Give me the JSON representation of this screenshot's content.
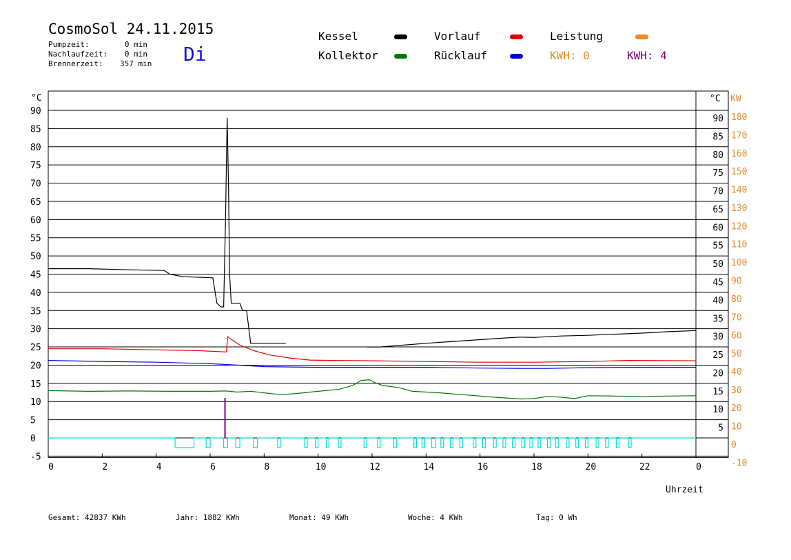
{
  "header": {
    "title": "CosmoSol 24.11.2015",
    "day": "Di",
    "stats": [
      {
        "label": "Pumpzeit:",
        "value": "0 min"
      },
      {
        "label": "Nachlaufzeit:",
        "value": "0 min"
      },
      {
        "label": "Brennerzeit:",
        "value": "357 min"
      }
    ]
  },
  "legend": {
    "kessel": "Kessel",
    "kollektor": "Kollektor",
    "vorlauf": "Vorlauf",
    "ruecklauf": "Rücklauf",
    "leistung": "Leistung",
    "kwh1": "KWH: 0",
    "kwh2": "KWH: 4"
  },
  "footer": {
    "gesamt": "Gesamt:  42837 KWh",
    "jahr": "Jahr:   1882 KWh",
    "monat": "Monat:     49 KWh",
    "woche": "Woche:      4 KWh",
    "tag": "Tag:      0 Wh"
  },
  "colors": {
    "kessel": "#000000",
    "kollektor": "#007800",
    "vorlauf": "#e00000",
    "ruecklauf": "#0000e0",
    "leistung": "#f08c1e",
    "kwh2": "#800080",
    "pump": "#00dcdc",
    "rightAxis": "#e08c28"
  },
  "chart_data": {
    "type": "line",
    "xlabel": "Uhrzeit",
    "ylabel_left": "°C",
    "ylabel_right": "°C",
    "ylabel_power": "KW",
    "xlim": [
      0,
      24
    ],
    "ylim": [
      -5,
      90
    ],
    "x_ticks": [
      "0",
      "2",
      "4",
      "6",
      "8",
      "10",
      "12",
      "14",
      "16",
      "18",
      "20",
      "22",
      "0"
    ],
    "y_ticks_left": [
      "90",
      "85",
      "80",
      "75",
      "70",
      "65",
      "60",
      "55",
      "50",
      "45",
      "40",
      "35",
      "30",
      "25",
      "20",
      "15",
      "10",
      "5",
      "0",
      "-5"
    ],
    "y_ticks_right": [
      "90",
      "85",
      "80",
      "75",
      "70",
      "65",
      "60",
      "55",
      "50",
      "45",
      "40",
      "35",
      "30",
      "25",
      "20",
      "15",
      "10",
      "5"
    ],
    "y_ticks_power": [
      "180",
      "170",
      "160",
      "150",
      "140",
      "130",
      "120",
      "110",
      "100",
      "90",
      "80",
      "70",
      "60",
      "50",
      "40",
      "30",
      "20",
      "10",
      "0",
      "-10"
    ],
    "grid": true,
    "series": [
      {
        "name": "Kessel",
        "color": "#000000",
        "points": [
          [
            0,
            46.5
          ],
          [
            1.5,
            46.5
          ],
          [
            3,
            46.2
          ],
          [
            4.3,
            46
          ],
          [
            4.5,
            45
          ],
          [
            5,
            44.3
          ],
          [
            6.1,
            44
          ],
          [
            6.25,
            37
          ],
          [
            6.4,
            36
          ],
          [
            6.5,
            36
          ],
          [
            6.57,
            60
          ],
          [
            6.63,
            88
          ],
          [
            6.68,
            70
          ],
          [
            6.72,
            45
          ],
          [
            6.78,
            37
          ],
          [
            7.1,
            37
          ],
          [
            7.2,
            35
          ],
          [
            7.35,
            35
          ],
          [
            7.5,
            26
          ],
          [
            8.8,
            26
          ]
        ]
      },
      {
        "name": "Kessel",
        "color": "#000000",
        "points": [
          [
            11.8,
            25
          ],
          [
            12.3,
            25
          ],
          [
            13,
            25.4
          ],
          [
            14,
            26
          ],
          [
            15,
            26.5
          ],
          [
            16,
            27
          ],
          [
            17,
            27.5
          ],
          [
            17.5,
            27.7
          ],
          [
            18,
            27.6
          ],
          [
            19,
            28
          ],
          [
            20,
            28.2
          ],
          [
            21,
            28.5
          ],
          [
            22,
            28.8
          ],
          [
            23,
            29.2
          ],
          [
            24,
            29.5
          ]
        ]
      },
      {
        "name": "Vorlauf",
        "color": "#e00000",
        "points": [
          [
            0,
            24.5
          ],
          [
            2,
            24.5
          ],
          [
            4,
            24.2
          ],
          [
            5.5,
            24
          ],
          [
            6.6,
            23.6
          ],
          [
            6.65,
            27.8
          ],
          [
            6.8,
            27
          ],
          [
            7.1,
            25.5
          ],
          [
            7.6,
            24
          ],
          [
            8.2,
            22.8
          ],
          [
            9,
            21.9
          ],
          [
            9.7,
            21.4
          ],
          [
            10.5,
            21.3
          ],
          [
            12,
            21.2
          ],
          [
            14,
            21
          ],
          [
            16,
            20.8
          ],
          [
            18,
            20.8
          ],
          [
            20,
            21
          ],
          [
            21.5,
            21.3
          ],
          [
            24,
            21.2
          ]
        ]
      },
      {
        "name": "Rücklauf",
        "color": "#0000e0",
        "points": [
          [
            0,
            21.3
          ],
          [
            2,
            21
          ],
          [
            4,
            20.8
          ],
          [
            6,
            20.4
          ],
          [
            7,
            20
          ],
          [
            8,
            19.6
          ],
          [
            10,
            19.4
          ],
          [
            12,
            19.4
          ],
          [
            14,
            19.4
          ],
          [
            16,
            19.2
          ],
          [
            17.5,
            19.1
          ],
          [
            18.5,
            19.1
          ],
          [
            20,
            19.3
          ],
          [
            22,
            19.4
          ],
          [
            24,
            19.4
          ]
        ]
      },
      {
        "name": "Kollektor",
        "color": "#007800",
        "points": [
          [
            0,
            13
          ],
          [
            1.5,
            12.8
          ],
          [
            3,
            12.9
          ],
          [
            4.5,
            12.8
          ],
          [
            6,
            12.8
          ],
          [
            6.6,
            12.9
          ],
          [
            7,
            12.6
          ],
          [
            7.5,
            12.8
          ],
          [
            8,
            12.4
          ],
          [
            8.6,
            11.9
          ],
          [
            9.2,
            12.2
          ],
          [
            10,
            12.8
          ],
          [
            10.8,
            13.4
          ],
          [
            11.3,
            14.5
          ],
          [
            11.6,
            15.8
          ],
          [
            11.9,
            16
          ],
          [
            12.1,
            15.2
          ],
          [
            12.4,
            14.4
          ],
          [
            13,
            13.8
          ],
          [
            13.5,
            12.8
          ],
          [
            14.5,
            12.4
          ],
          [
            15.5,
            11.8
          ],
          [
            16.5,
            11.2
          ],
          [
            17.5,
            10.7
          ],
          [
            18,
            10.8
          ],
          [
            18.5,
            11.4
          ],
          [
            19,
            11.2
          ],
          [
            19.5,
            10.8
          ],
          [
            20,
            11.6
          ],
          [
            21,
            11.5
          ],
          [
            22,
            11.4
          ],
          [
            23,
            11.5
          ],
          [
            24,
            11.6
          ]
        ]
      }
    ],
    "kwh_spike": {
      "x": 6.55,
      "from": 0,
      "to": 11
    },
    "pump_cycles": [
      [
        4.7,
        5.4
      ],
      [
        5.85,
        6.0
      ],
      [
        6.5,
        6.65
      ],
      [
        6.95,
        7.1
      ],
      [
        7.6,
        7.75
      ],
      [
        8.5,
        8.6
      ],
      [
        9.5,
        9.6
      ],
      [
        9.9,
        10
      ],
      [
        10.3,
        10.4
      ],
      [
        10.75,
        10.85
      ],
      [
        11.7,
        11.8
      ],
      [
        12.2,
        12.3
      ],
      [
        12.8,
        12.9
      ],
      [
        13.55,
        13.65
      ],
      [
        13.85,
        13.95
      ],
      [
        14.2,
        14.35
      ],
      [
        14.55,
        14.65
      ],
      [
        14.9,
        15
      ],
      [
        15.25,
        15.35
      ],
      [
        15.75,
        15.85
      ],
      [
        16.1,
        16.2
      ],
      [
        16.5,
        16.6
      ],
      [
        16.85,
        16.95
      ],
      [
        17.2,
        17.3
      ],
      [
        17.55,
        17.65
      ],
      [
        17.85,
        17.95
      ],
      [
        18.15,
        18.25
      ],
      [
        18.5,
        18.6
      ],
      [
        18.8,
        18.9
      ],
      [
        19.2,
        19.3
      ],
      [
        19.55,
        19.65
      ],
      [
        19.9,
        20.0
      ],
      [
        20.3,
        20.4
      ],
      [
        20.65,
        20.75
      ],
      [
        21.05,
        21.15
      ],
      [
        21.5,
        21.6
      ]
    ]
  }
}
